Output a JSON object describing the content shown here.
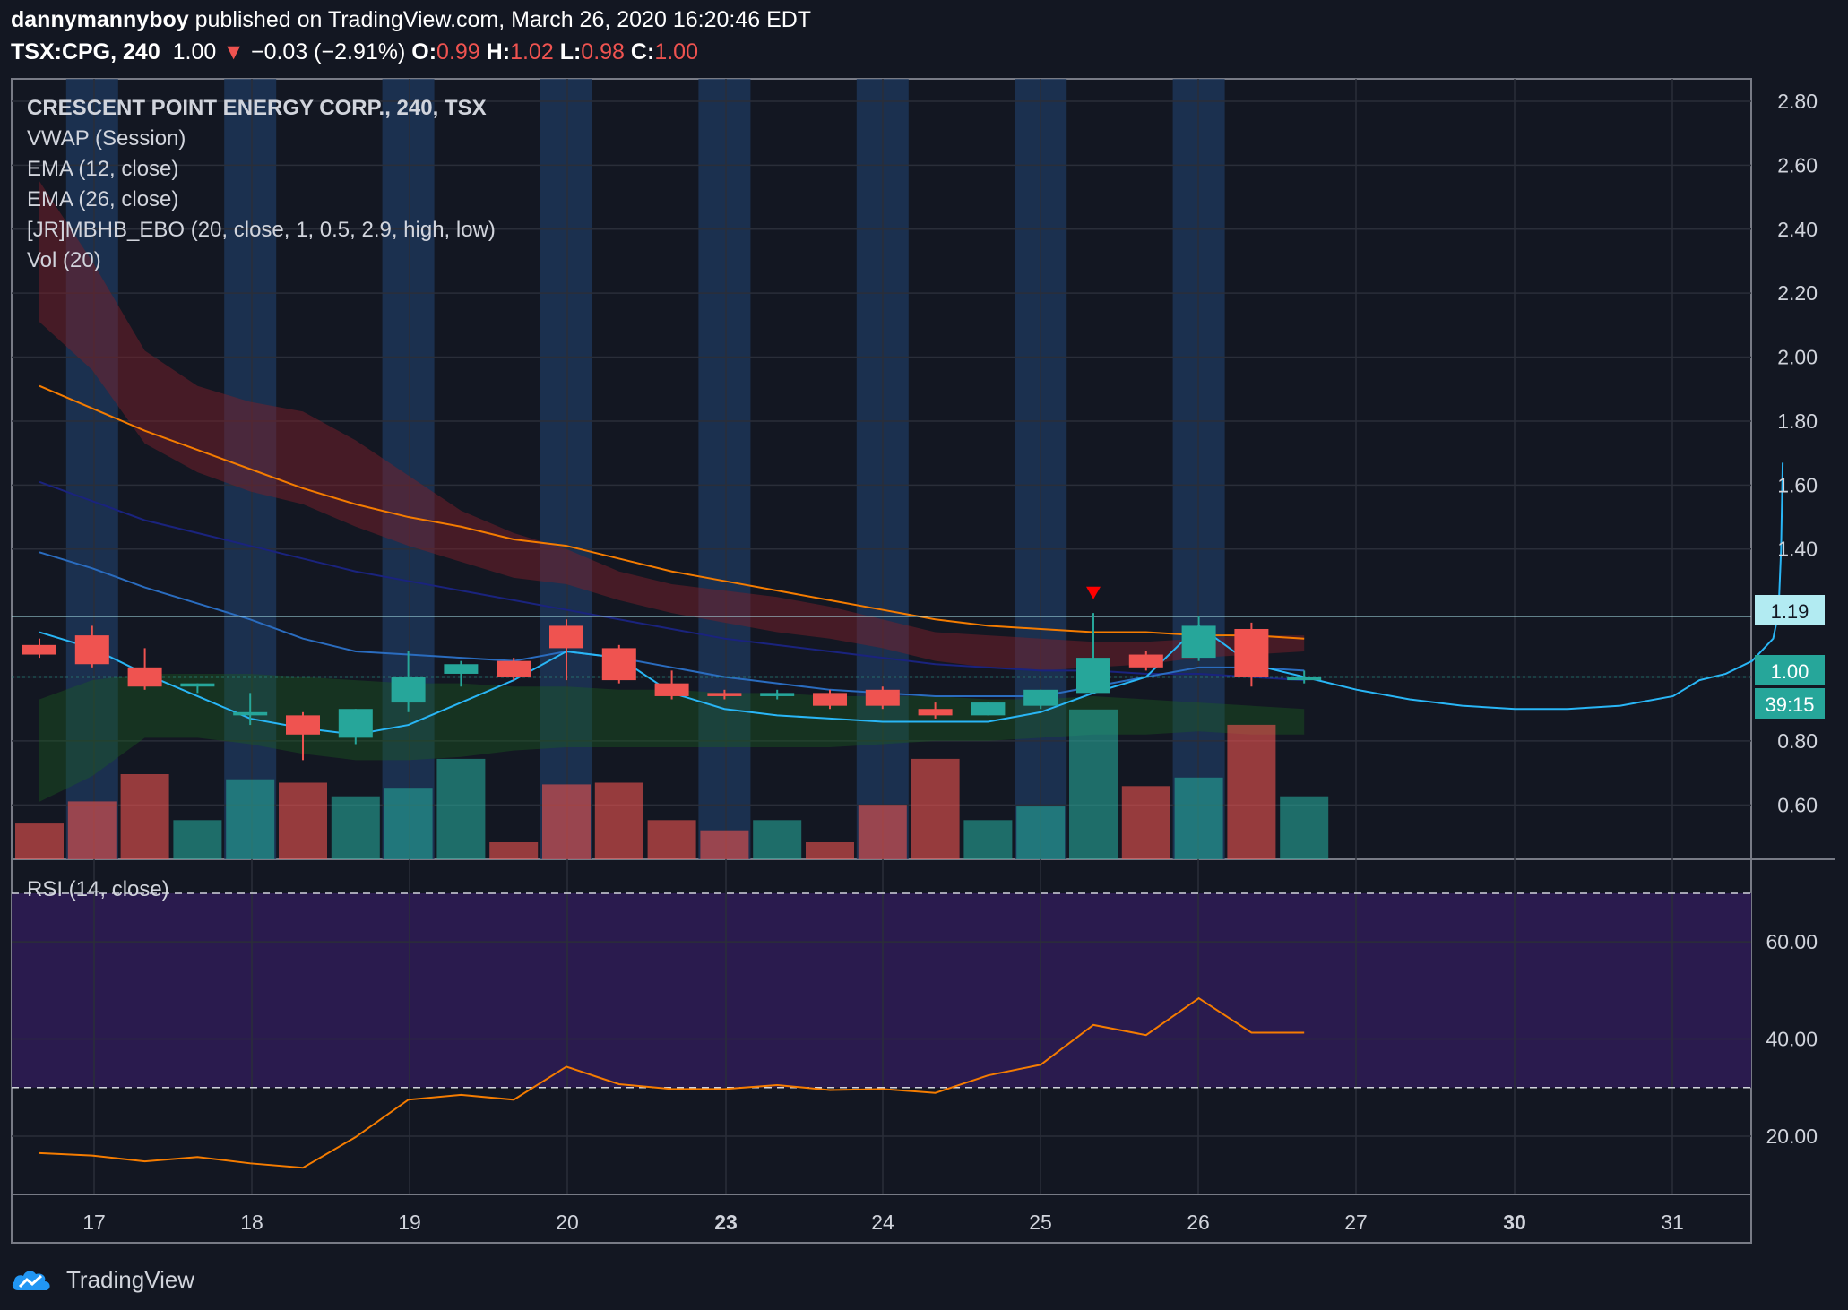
{
  "header": {
    "user": "dannymannyboy",
    "published_text": "published on TradingView.com, March 26, 2020 16:20:46 EDT",
    "symbol_interval": "TSX:CPG, 240",
    "last_price": "1.00",
    "change_arrow": "▼",
    "change": "−0.03 (−2.91%)",
    "o_label": "O:",
    "o_value": "0.99",
    "h_label": "H:",
    "h_value": "1.02",
    "l_label": "L:",
    "l_value": "0.98",
    "c_label": "C:",
    "c_value": "1.00"
  },
  "legend": {
    "title": "CRESCENT POINT ENERGY CORP., 240, TSX",
    "items": [
      "VWAP (Session)",
      "EMA (12, close)",
      "EMA (26, close)",
      "[JR]MBHB_EBO (20, close, 1, 0.5, 2.9, high, low)",
      "Vol (20)"
    ]
  },
  "rsi_label": "RSI (14, close)",
  "price_tags": {
    "resistance": "1.19",
    "last": "1.00",
    "countdown": "39:15"
  },
  "footer": {
    "brand": "TradingView"
  },
  "colors": {
    "background": "#131722",
    "up": "#26a69a",
    "down": "#ef5350",
    "ema_fast": "#2a6cbf",
    "ema_slow": "#f57c00",
    "vwap": "#29b6f6",
    "session_band": "#1f3a5f",
    "rsi_band": "#2a1b4e",
    "rsi_line": "#f57c00"
  },
  "chart_data": [
    {
      "type": "candlestick",
      "title": "CRESCENT POINT ENERGY CORP., 240, TSX",
      "x_tick_labels": [
        "17",
        "18",
        "19",
        "20",
        "23",
        "24",
        "25",
        "26",
        "27",
        "30",
        "31"
      ],
      "y_ticks": [
        2.8,
        2.6,
        2.4,
        2.2,
        2.0,
        1.8,
        1.6,
        1.4,
        1.0,
        0.8,
        0.6
      ],
      "ylim": [
        0.43,
        2.87
      ],
      "candles": [
        {
          "o": 1.1,
          "h": 1.12,
          "l": 1.06,
          "c": 1.07
        },
        {
          "o": 1.13,
          "h": 1.16,
          "l": 1.03,
          "c": 1.04
        },
        {
          "o": 1.03,
          "h": 1.09,
          "l": 0.96,
          "c": 0.97
        },
        {
          "o": 0.97,
          "h": 0.98,
          "l": 0.95,
          "c": 0.98
        },
        {
          "o": 0.88,
          "h": 0.95,
          "l": 0.85,
          "c": 0.89
        },
        {
          "o": 0.88,
          "h": 0.89,
          "l": 0.74,
          "c": 0.82
        },
        {
          "o": 0.81,
          "h": 0.9,
          "l": 0.79,
          "c": 0.9
        },
        {
          "o": 0.92,
          "h": 1.08,
          "l": 0.89,
          "c": 1.0
        },
        {
          "o": 1.01,
          "h": 1.05,
          "l": 0.97,
          "c": 1.04
        },
        {
          "o": 1.05,
          "h": 1.06,
          "l": 0.99,
          "c": 1.0
        },
        {
          "o": 1.16,
          "h": 1.18,
          "l": 0.99,
          "c": 1.09
        },
        {
          "o": 1.09,
          "h": 1.1,
          "l": 0.98,
          "c": 0.99
        },
        {
          "o": 0.98,
          "h": 1.02,
          "l": 0.93,
          "c": 0.94
        },
        {
          "o": 0.95,
          "h": 0.96,
          "l": 0.93,
          "c": 0.94
        },
        {
          "o": 0.94,
          "h": 0.96,
          "l": 0.93,
          "c": 0.95
        },
        {
          "o": 0.95,
          "h": 0.96,
          "l": 0.9,
          "c": 0.91
        },
        {
          "o": 0.96,
          "h": 0.97,
          "l": 0.9,
          "c": 0.91
        },
        {
          "o": 0.9,
          "h": 0.92,
          "l": 0.87,
          "c": 0.88
        },
        {
          "o": 0.88,
          "h": 0.92,
          "l": 0.88,
          "c": 0.92
        },
        {
          "o": 0.91,
          "h": 0.96,
          "l": 0.9,
          "c": 0.96
        },
        {
          "o": 0.95,
          "h": 1.2,
          "l": 0.95,
          "c": 1.06
        },
        {
          "o": 1.07,
          "h": 1.08,
          "l": 1.02,
          "c": 1.03
        },
        {
          "o": 1.06,
          "h": 1.19,
          "l": 1.05,
          "c": 1.16
        },
        {
          "o": 1.15,
          "h": 1.17,
          "l": 0.97,
          "c": 1.0
        },
        {
          "o": 0.99,
          "h": 1.02,
          "l": 0.98,
          "c": 1.0
        }
      ],
      "volume_up": [
        false,
        false,
        false,
        true,
        true,
        false,
        true,
        true,
        true,
        false,
        false,
        false,
        false,
        false,
        true,
        false,
        false,
        false,
        true,
        true,
        true,
        false,
        true,
        false,
        true
      ],
      "volume_rel": [
        0.21,
        0.34,
        0.5,
        0.23,
        0.47,
        0.45,
        0.37,
        0.42,
        0.59,
        0.1,
        0.44,
        0.45,
        0.23,
        0.17,
        0.23,
        0.1,
        0.32,
        0.59,
        0.23,
        0.31,
        0.88,
        0.43,
        0.48,
        0.79,
        0.37
      ],
      "session_highlight_candles": [
        1,
        4,
        7,
        10,
        13,
        16,
        19,
        22
      ],
      "resistance_level": 1.19,
      "last_price_level": 1.0,
      "ema12": [
        1.91,
        1.84,
        1.77,
        1.71,
        1.65,
        1.59,
        1.54,
        1.5,
        1.47,
        1.43,
        1.41,
        1.37,
        1.33,
        1.3,
        1.27,
        1.24,
        1.21,
        1.18,
        1.16,
        1.15,
        1.14,
        1.14,
        1.13,
        1.13,
        1.12
      ],
      "ema26": [
        1.61,
        1.55,
        1.49,
        1.45,
        1.41,
        1.37,
        1.33,
        1.3,
        1.27,
        1.24,
        1.21,
        1.18,
        1.15,
        1.12,
        1.1,
        1.08,
        1.06,
        1.04,
        1.03,
        1.02,
        1.02,
        1.01,
        1.01,
        1.0,
        0.99
      ],
      "blue_mid": [
        1.39,
        1.34,
        1.28,
        1.23,
        1.18,
        1.12,
        1.08,
        1.07,
        1.06,
        1.05,
        1.08,
        1.06,
        1.03,
        1.0,
        0.98,
        0.96,
        0.95,
        0.94,
        0.94,
        0.94,
        0.97,
        1.0,
        1.03,
        1.03,
        1.02
      ],
      "vwap_path": [
        [
          0,
          1.14
        ],
        [
          1,
          1.09
        ],
        [
          2,
          1.01
        ],
        [
          3,
          0.94
        ],
        [
          4,
          0.87
        ],
        [
          5,
          0.84
        ],
        [
          6,
          0.82
        ],
        [
          7,
          0.85
        ],
        [
          8,
          0.92
        ],
        [
          9,
          0.99
        ],
        [
          10,
          1.08
        ],
        [
          11,
          1.06
        ],
        [
          12,
          0.95
        ],
        [
          13,
          0.9
        ],
        [
          14,
          0.88
        ],
        [
          15,
          0.87
        ],
        [
          16,
          0.86
        ],
        [
          17,
          0.86
        ],
        [
          18,
          0.86
        ],
        [
          19,
          0.89
        ],
        [
          20,
          0.95
        ],
        [
          21,
          1.0
        ],
        [
          22,
          1.16
        ],
        [
          23,
          1.04
        ],
        [
          24,
          1.0
        ],
        [
          25,
          0.96
        ],
        [
          26,
          0.93
        ],
        [
          27,
          0.91
        ],
        [
          28,
          0.9
        ],
        [
          29,
          0.9
        ],
        [
          30,
          0.91
        ],
        [
          31,
          0.94
        ],
        [
          31.5,
          0.99
        ],
        [
          32,
          1.01
        ],
        [
          32.5,
          1.05
        ],
        [
          32.9,
          1.12
        ],
        [
          33.0,
          1.2
        ],
        [
          33.05,
          1.4
        ],
        [
          33.08,
          1.67
        ]
      ],
      "red_band_upper": [
        2.55,
        2.3,
        2.02,
        1.91,
        1.86,
        1.83,
        1.74,
        1.63,
        1.52,
        1.45,
        1.4,
        1.33,
        1.29,
        1.27,
        1.25,
        1.22,
        1.18,
        1.14,
        1.13,
        1.12,
        1.11,
        1.11,
        1.12,
        1.13,
        1.13
      ],
      "red_band_lower": [
        2.11,
        1.96,
        1.73,
        1.64,
        1.58,
        1.54,
        1.47,
        1.41,
        1.36,
        1.31,
        1.29,
        1.24,
        1.2,
        1.17,
        1.14,
        1.12,
        1.09,
        1.05,
        1.03,
        1.02,
        1.03,
        1.04,
        1.06,
        1.07,
        1.08
      ],
      "green_band_upper": [
        0.93,
        0.99,
        1.01,
        1.01,
        1.01,
        1.0,
        0.99,
        0.98,
        0.98,
        0.97,
        0.97,
        0.96,
        0.96,
        0.95,
        0.95,
        0.94,
        0.94,
        0.94,
        0.93,
        0.93,
        0.94,
        0.93,
        0.92,
        0.91,
        0.9
      ],
      "green_band_lower": [
        0.61,
        0.69,
        0.81,
        0.81,
        0.79,
        0.76,
        0.74,
        0.74,
        0.75,
        0.77,
        0.78,
        0.78,
        0.78,
        0.78,
        0.78,
        0.78,
        0.79,
        0.8,
        0.8,
        0.81,
        0.82,
        0.82,
        0.83,
        0.82,
        0.82
      ],
      "signal_marker": {
        "candle": 20,
        "price": 1.26
      }
    },
    {
      "type": "line",
      "title": "RSI (14, close)",
      "y_ticks": [
        60.0,
        40.0,
        20.0
      ],
      "ylim": [
        8,
        77
      ],
      "overbought": 70,
      "oversold": 30,
      "values": [
        16.5,
        16.0,
        14.8,
        15.7,
        14.4,
        13.5,
        19.8,
        27.5,
        28.5,
        27.5,
        34.3,
        30.7,
        29.7,
        29.7,
        30.5,
        29.5,
        29.7,
        28.9,
        32.5,
        34.7,
        42.9,
        40.8,
        48.4,
        41.3,
        41.3
      ]
    }
  ]
}
